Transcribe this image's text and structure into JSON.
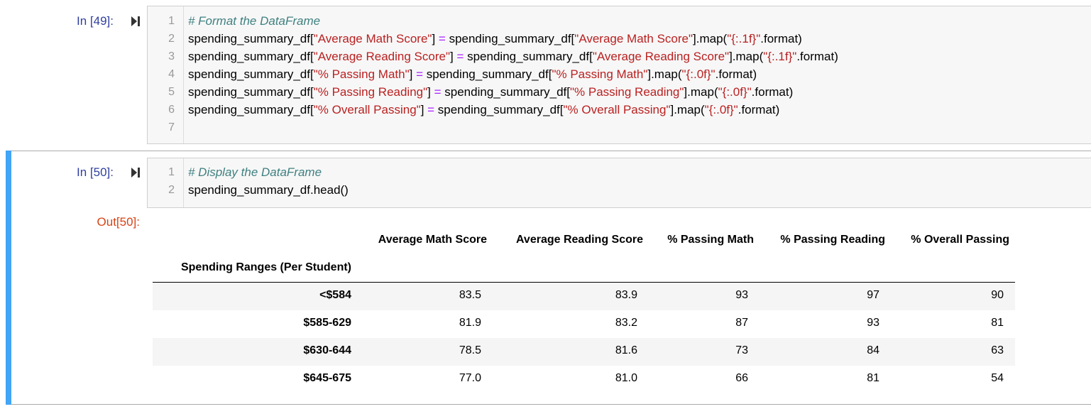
{
  "cells": [
    {
      "prompt": "In [49]:",
      "line_numbers": [
        1,
        2,
        3,
        4,
        5,
        6,
        7
      ],
      "lines": [
        [
          {
            "text": "# Format the DataFrame",
            "color": "#408080",
            "italic": true
          }
        ],
        [
          {
            "text": "spending_summary_df[",
            "color": "#000000"
          },
          {
            "text": "\"Average Math Score\"",
            "color": "#ba2121"
          },
          {
            "text": "] ",
            "color": "#000000"
          },
          {
            "text": "=",
            "color": "#aa22ff"
          },
          {
            "text": " spending_summary_df[",
            "color": "#000000"
          },
          {
            "text": "\"Average Math Score\"",
            "color": "#ba2121"
          },
          {
            "text": "].map(",
            "color": "#000000"
          },
          {
            "text": "\"{:.1f}\"",
            "color": "#ba2121"
          },
          {
            "text": ".format)",
            "color": "#000000"
          }
        ],
        [
          {
            "text": "spending_summary_df[",
            "color": "#000000"
          },
          {
            "text": "\"Average Reading Score\"",
            "color": "#ba2121"
          },
          {
            "text": "] ",
            "color": "#000000"
          },
          {
            "text": "=",
            "color": "#aa22ff"
          },
          {
            "text": " spending_summary_df[",
            "color": "#000000"
          },
          {
            "text": "\"Average Reading Score\"",
            "color": "#ba2121"
          },
          {
            "text": "].map(",
            "color": "#000000"
          },
          {
            "text": "\"{:.1f}\"",
            "color": "#ba2121"
          },
          {
            "text": ".format)",
            "color": "#000000"
          }
        ],
        [
          {
            "text": "spending_summary_df[",
            "color": "#000000"
          },
          {
            "text": "\"% Passing Math\"",
            "color": "#ba2121"
          },
          {
            "text": "] ",
            "color": "#000000"
          },
          {
            "text": "=",
            "color": "#aa22ff"
          },
          {
            "text": " spending_summary_df[",
            "color": "#000000"
          },
          {
            "text": "\"% Passing Math\"",
            "color": "#ba2121"
          },
          {
            "text": "].map(",
            "color": "#000000"
          },
          {
            "text": "\"{:.0f}\"",
            "color": "#ba2121"
          },
          {
            "text": ".format)",
            "color": "#000000"
          }
        ],
        [
          {
            "text": "spending_summary_df[",
            "color": "#000000"
          },
          {
            "text": "\"% Passing Reading\"",
            "color": "#ba2121"
          },
          {
            "text": "] ",
            "color": "#000000"
          },
          {
            "text": "=",
            "color": "#aa22ff"
          },
          {
            "text": " spending_summary_df[",
            "color": "#000000"
          },
          {
            "text": "\"% Passing Reading\"",
            "color": "#ba2121"
          },
          {
            "text": "].map(",
            "color": "#000000"
          },
          {
            "text": "\"{:.0f}\"",
            "color": "#ba2121"
          },
          {
            "text": ".format)",
            "color": "#000000"
          }
        ],
        [
          {
            "text": "spending_summary_df[",
            "color": "#000000"
          },
          {
            "text": "\"% Overall Passing\"",
            "color": "#ba2121"
          },
          {
            "text": "] ",
            "color": "#000000"
          },
          {
            "text": "=",
            "color": "#aa22ff"
          },
          {
            "text": " spending_summary_df[",
            "color": "#000000"
          },
          {
            "text": "\"% Overall Passing\"",
            "color": "#ba2121"
          },
          {
            "text": "].map(",
            "color": "#000000"
          },
          {
            "text": "\"{:.0f}\"",
            "color": "#ba2121"
          },
          {
            "text": ".format)",
            "color": "#000000"
          }
        ],
        []
      ]
    },
    {
      "prompt": "In [50]:",
      "line_numbers": [
        1,
        2
      ],
      "lines": [
        [
          {
            "text": "# Display the DataFrame",
            "color": "#408080",
            "italic": true
          }
        ],
        [
          {
            "text": "spending_summary_df.head()",
            "color": "#000000"
          }
        ]
      ],
      "output_prompt": "Out[50]:",
      "table": {
        "columns": [
          "Average Math Score",
          "Average Reading Score",
          "% Passing Math",
          "% Passing Reading",
          "% Overall Passing"
        ],
        "index_name": "Spending Ranges (Per Student)",
        "rows": [
          {
            "index": "<$584",
            "values": [
              "83.5",
              "83.9",
              "93",
              "97",
              "90"
            ]
          },
          {
            "index": "$585-629",
            "values": [
              "81.9",
              "83.2",
              "87",
              "93",
              "81"
            ]
          },
          {
            "index": "$630-644",
            "values": [
              "78.5",
              "81.6",
              "73",
              "84",
              "63"
            ]
          },
          {
            "index": "$645-675",
            "values": [
              "77.0",
              "81.0",
              "66",
              "81",
              "54"
            ]
          }
        ]
      }
    }
  ]
}
